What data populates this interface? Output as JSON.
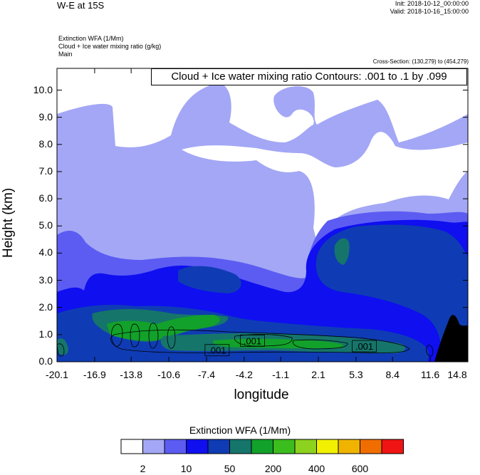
{
  "header": {
    "title": "W-E at 15S",
    "init": "Init: 2018-10-12_00:00:00",
    "valid": "Valid: 2018-10-16_15:00:00",
    "field_line1": "Extinction WFA   (1/Mm)",
    "field_line2": "Cloud + Ice water mixing ratio   (g/kg)",
    "field_line3": "Main",
    "cross_section": "Cross-Section: (130,279) to (454,279)",
    "contour_info": "Cloud + Ice water mixing ratio Contours: .001 to .1 by .099"
  },
  "colors": {
    "levels": [
      "#ffffff",
      "#a3a7f5",
      "#5c5cf2",
      "#0f0ff0",
      "#0f3cb4",
      "#16756a",
      "#12a12a",
      "#3cbd1e",
      "#8cd21e",
      "#f0f000",
      "#f0b400",
      "#f06e00",
      "#f01414"
    ],
    "terrain": "#000000"
  },
  "chart_data": {
    "type": "heatmap",
    "title": "W-E at 15S",
    "xlabel": "longitude",
    "ylabel": "Height (km)",
    "xlim": [
      -20.1,
      14.8
    ],
    "ylim": [
      0.0,
      10.8
    ],
    "x_ticks": [
      "-20.1",
      "-16.9",
      "-13.8",
      "-10.6",
      "-7.4",
      "-4.2",
      "-1.1",
      "2.1",
      "5.3",
      "8.4",
      "11.6",
      "14.8"
    ],
    "y_ticks": [
      "0.0",
      "1.0",
      "2.0",
      "3.0",
      "4.0",
      "5.0",
      "6.0",
      "7.0",
      "8.0",
      "9.0",
      "10.0"
    ],
    "contour_labels": [
      {
        "text": ".001",
        "x": -6.5,
        "y": 0.4
      },
      {
        "text": ".001",
        "x": -3.5,
        "y": 0.75
      },
      {
        "text": ".001",
        "x": 6.0,
        "y": 0.55
      }
    ],
    "colorbar": {
      "title": "Extinction WFA  (1/Mm)",
      "labels": [
        {
          "text": "2",
          "index": 1
        },
        {
          "text": "10",
          "index": 3
        },
        {
          "text": "50",
          "index": 5
        },
        {
          "text": "200",
          "index": 7
        },
        {
          "text": "400",
          "index": 9
        },
        {
          "text": "600",
          "index": 11
        }
      ]
    }
  }
}
